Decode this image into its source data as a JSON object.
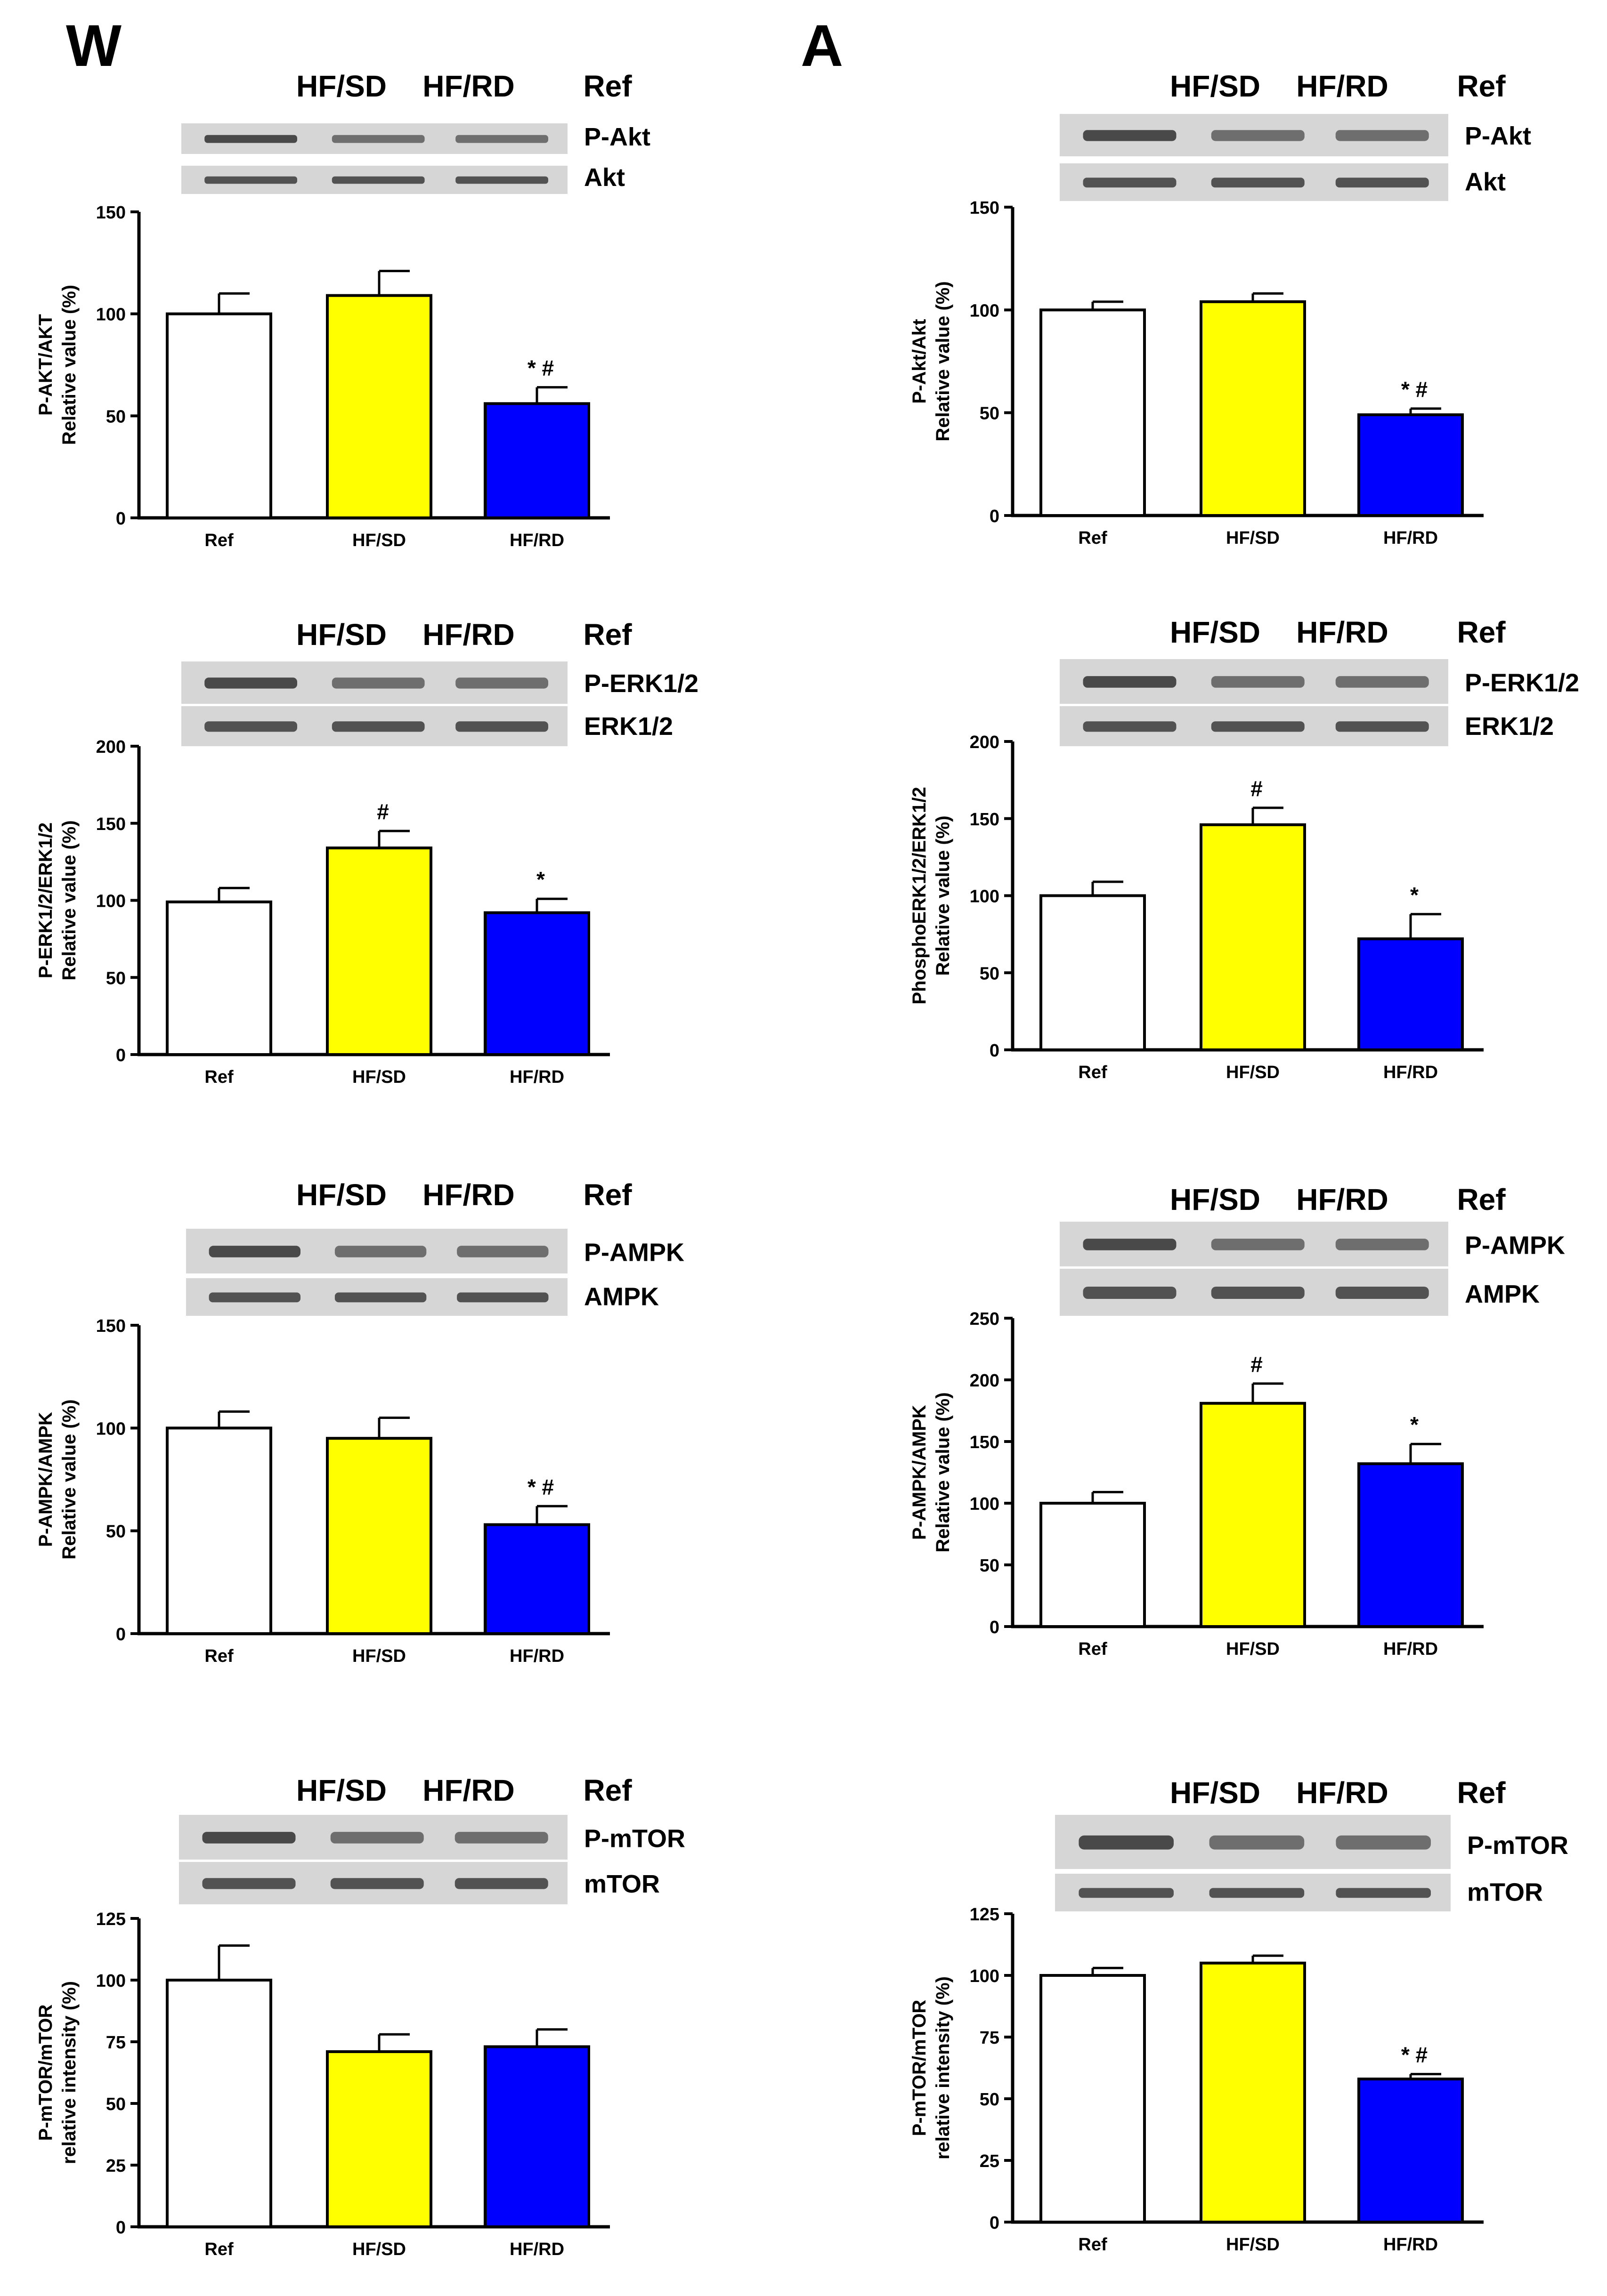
{
  "figure": {
    "columns": [
      {
        "letter": "W"
      },
      {
        "letter": "A"
      }
    ]
  },
  "chart_data": [
    {
      "type": "bar",
      "column": "W",
      "lanes": [
        "HF/SD",
        "HF/RD",
        "Ref"
      ],
      "blot_labels": [
        "P-Akt",
        "Akt"
      ],
      "categories": [
        "Ref",
        "HF/SD",
        "HF/RD"
      ],
      "values": [
        100,
        109,
        56
      ],
      "errors": [
        10,
        12,
        8
      ],
      "annotations": [
        "",
        "",
        "*#"
      ],
      "colors": [
        "#ffffff",
        "#ffff00",
        "#0000ff"
      ],
      "ylabel": [
        "P-AKT/AKT",
        "Relative value (%)"
      ],
      "ylim": [
        0,
        150
      ],
      "yticks": [
        0,
        50,
        100,
        150
      ]
    },
    {
      "type": "bar",
      "column": "W",
      "lanes": [
        "HF/SD",
        "HF/RD",
        "Ref"
      ],
      "blot_labels": [
        "P-ERK1/2",
        "ERK1/2"
      ],
      "categories": [
        "Ref",
        "HF/SD",
        "HF/RD"
      ],
      "values": [
        99,
        134,
        92
      ],
      "errors": [
        9,
        11,
        9
      ],
      "annotations": [
        "",
        "#",
        "*"
      ],
      "colors": [
        "#ffffff",
        "#ffff00",
        "#0000ff"
      ],
      "ylabel": [
        "P-ERK1/2/ERK1/2",
        "Relative value (%)"
      ],
      "ylim": [
        0,
        200
      ],
      "yticks": [
        0,
        50,
        100,
        150,
        200
      ]
    },
    {
      "type": "bar",
      "column": "W",
      "lanes": [
        "HF/SD",
        "HF/RD",
        "Ref"
      ],
      "blot_labels": [
        "P-AMPK",
        "AMPK"
      ],
      "categories": [
        "Ref",
        "HF/SD",
        "HF/RD"
      ],
      "values": [
        100,
        95,
        53
      ],
      "errors": [
        8,
        10,
        9
      ],
      "annotations": [
        "",
        "",
        "*#"
      ],
      "colors": [
        "#ffffff",
        "#ffff00",
        "#0000ff"
      ],
      "ylabel": [
        "P-AMPK/AMPK",
        "Relative value (%)"
      ],
      "ylim": [
        0,
        150
      ],
      "yticks": [
        0,
        50,
        100,
        150
      ]
    },
    {
      "type": "bar",
      "column": "W",
      "lanes": [
        "HF/SD",
        "HF/RD",
        "Ref"
      ],
      "blot_labels": [
        "P-mTOR",
        "mTOR"
      ],
      "categories": [
        "Ref",
        "HF/SD",
        "HF/RD"
      ],
      "values": [
        100,
        71,
        73
      ],
      "errors": [
        14,
        7,
        7
      ],
      "annotations": [
        "",
        "",
        ""
      ],
      "colors": [
        "#ffffff",
        "#ffff00",
        "#0000ff"
      ],
      "ylabel": [
        "P-mTOR/mTOR",
        "relative intensity (%)"
      ],
      "ylim": [
        0,
        125
      ],
      "yticks": [
        0,
        25,
        50,
        75,
        100,
        125
      ]
    },
    {
      "type": "bar",
      "column": "A",
      "lanes": [
        "HF/SD",
        "HF/RD",
        "Ref"
      ],
      "blot_labels": [
        "P-Akt",
        "Akt"
      ],
      "categories": [
        "Ref",
        "HF/SD",
        "HF/RD"
      ],
      "values": [
        100,
        104,
        49
      ],
      "errors": [
        4,
        4,
        3
      ],
      "annotations": [
        "",
        "",
        "*#"
      ],
      "colors": [
        "#ffffff",
        "#ffff00",
        "#0000ff"
      ],
      "ylabel": [
        "P-Akt/Akt",
        "Relative value (%)"
      ],
      "ylim": [
        0,
        150
      ],
      "yticks": [
        0,
        50,
        100,
        150
      ]
    },
    {
      "type": "bar",
      "column": "A",
      "lanes": [
        "HF/SD",
        "HF/RD",
        "Ref"
      ],
      "blot_labels": [
        "P-ERK1/2",
        "ERK1/2"
      ],
      "categories": [
        "Ref",
        "HF/SD",
        "HF/RD"
      ],
      "values": [
        100,
        146,
        72
      ],
      "errors": [
        9,
        11,
        16
      ],
      "annotations": [
        "",
        "#",
        "*"
      ],
      "colors": [
        "#ffffff",
        "#ffff00",
        "#0000ff"
      ],
      "ylabel": [
        "PhosphoERK1/2/ERK1/2",
        "Relative value (%)"
      ],
      "ylim": [
        0,
        200
      ],
      "yticks": [
        0,
        50,
        100,
        150,
        200
      ]
    },
    {
      "type": "bar",
      "column": "A",
      "lanes": [
        "HF/SD",
        "HF/RD",
        "Ref"
      ],
      "blot_labels": [
        "P-AMPK",
        "AMPK"
      ],
      "categories": [
        "Ref",
        "HF/SD",
        "HF/RD"
      ],
      "values": [
        100,
        181,
        132
      ],
      "errors": [
        9,
        16,
        16
      ],
      "annotations": [
        "",
        "#",
        "*"
      ],
      "colors": [
        "#ffffff",
        "#ffff00",
        "#0000ff"
      ],
      "ylabel": [
        "P-AMPK/AMPK",
        "Relative value (%)"
      ],
      "ylim": [
        0,
        250
      ],
      "yticks": [
        0,
        50,
        100,
        150,
        200,
        250
      ]
    },
    {
      "type": "bar",
      "column": "A",
      "lanes": [
        "HF/SD",
        "HF/RD",
        "Ref"
      ],
      "blot_labels": [
        "P-mTOR",
        "mTOR"
      ],
      "categories": [
        "Ref",
        "HF/SD",
        "HF/RD"
      ],
      "values": [
        100,
        105,
        58
      ],
      "errors": [
        3,
        3,
        2
      ],
      "annotations": [
        "",
        "",
        "*#"
      ],
      "colors": [
        "#ffffff",
        "#ffff00",
        "#0000ff"
      ],
      "ylabel": [
        "P-mTOR/mTOR",
        "relative intensity (%)"
      ],
      "ylim": [
        0,
        125
      ],
      "yticks": [
        0,
        25,
        50,
        75,
        100,
        125
      ]
    }
  ]
}
